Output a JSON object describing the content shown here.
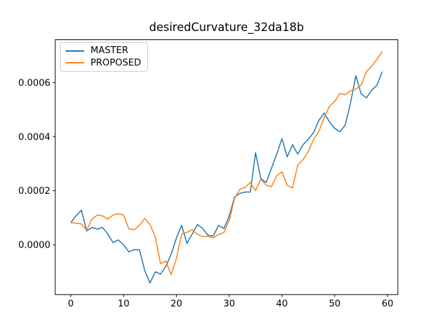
{
  "figure": {
    "title": "desiredCurvature_32da18b"
  },
  "legend": {
    "entries": [
      {
        "label": "MASTER",
        "color": "#1f77b4"
      },
      {
        "label": "PROPOSED",
        "color": "#ff7f0e"
      }
    ]
  },
  "chart_data": {
    "type": "line",
    "title": "desiredCurvature_32da18b",
    "xlabel": "",
    "ylabel": "",
    "grid": false,
    "legend_position": "upper left",
    "xlim": [
      -2.95,
      61.95
    ],
    "ylim": [
      -0.000184,
      0.000758
    ],
    "xticks": [
      0,
      10,
      20,
      30,
      40,
      50,
      60
    ],
    "xtick_labels": [
      "0",
      "10",
      "20",
      "30",
      "40",
      "50",
      "60"
    ],
    "yticks": [
      0.0,
      0.0002,
      0.0004,
      0.0006
    ],
    "ytick_labels": [
      "0.0000",
      "0.0002",
      "0.0004",
      "0.0006"
    ],
    "x": [
      0,
      1,
      2,
      3,
      4,
      5,
      6,
      7,
      8,
      9,
      10,
      11,
      12,
      13,
      14,
      15,
      16,
      17,
      18,
      19,
      20,
      21,
      22,
      23,
      24,
      25,
      26,
      27,
      28,
      29,
      30,
      31,
      32,
      33,
      34,
      35,
      36,
      37,
      38,
      39,
      40,
      41,
      42,
      43,
      44,
      45,
      46,
      47,
      48,
      49,
      50,
      51,
      52,
      53,
      54,
      55,
      56,
      57,
      58,
      59
    ],
    "series": [
      {
        "name": "MASTER",
        "color": "#1f77b4",
        "values": [
          8.2e-05,
          0.000107,
          0.000128,
          5.1e-05,
          6.4e-05,
          5.8e-05,
          6.4e-05,
          4e-05,
          8e-06,
          1.8e-05,
          0.0,
          -2.6e-05,
          -1.8e-05,
          -1.8e-05,
          -9.5e-05,
          -0.000141,
          -0.0001,
          -0.000108,
          -8e-05,
          -3.5e-05,
          2.5e-05,
          7.2e-05,
          5e-06,
          4e-05,
          7.5e-05,
          6e-05,
          3.5e-05,
          3.3e-05,
          7.2e-05,
          6e-05,
          0.000105,
          0.000175,
          0.00019,
          0.000195,
          0.000195,
          0.00034,
          0.000245,
          0.00023,
          0.000282,
          0.000335,
          0.000392,
          0.000325,
          0.00037,
          0.000335,
          0.00037,
          0.00039,
          0.000415,
          0.00046,
          0.000487,
          0.000455,
          0.00043,
          0.000418,
          0.000443,
          0.000525,
          0.000625,
          0.000558,
          0.000543,
          0.000571,
          0.00059,
          0.00064
        ]
      },
      {
        "name": "PROPOSED",
        "color": "#ff7f0e",
        "values": [
          8.2e-05,
          8e-05,
          7.7e-05,
          5.4e-05,
          9.5e-05,
          0.00011,
          0.000107,
          9.5e-05,
          0.00011,
          0.000115,
          0.00011,
          5.9e-05,
          5.6e-05,
          7.2e-05,
          9.7e-05,
          7.5e-05,
          3e-05,
          -7e-05,
          -6e-05,
          -0.00011,
          -5.1e-05,
          4e-05,
          4.6e-05,
          5.6e-05,
          3.8e-05,
          3.1e-05,
          3.1e-05,
          2.6e-05,
          3.8e-05,
          4.5e-05,
          9e-05,
          0.00017,
          0.000205,
          0.000212,
          0.00023,
          0.0002,
          0.000243,
          0.00022,
          0.000215,
          0.000255,
          0.00027,
          0.00022,
          0.00021,
          0.000295,
          0.000315,
          0.000345,
          0.00039,
          0.00042,
          0.00047,
          0.000512,
          0.00053,
          0.00056,
          0.000555,
          0.00057,
          0.000575,
          0.00059,
          0.00064,
          0.00066,
          0.000685,
          0.000715
        ]
      }
    ]
  }
}
